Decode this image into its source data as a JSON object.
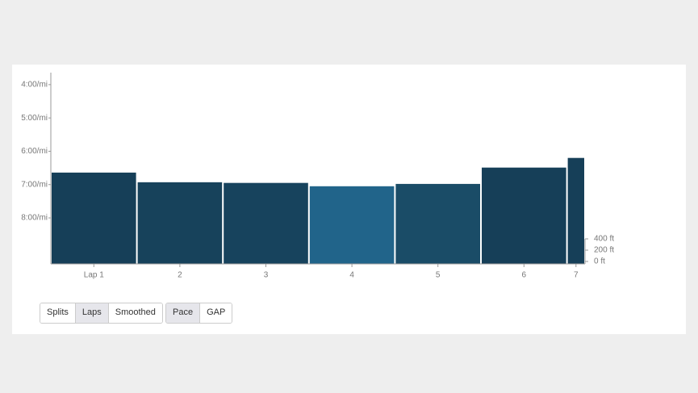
{
  "chart_data": {
    "type": "bar",
    "categories": [
      "Lap 1",
      "2",
      "3",
      "4",
      "5",
      "6",
      "7"
    ],
    "widths": [
      1,
      1,
      1,
      1,
      1,
      1,
      0.21
    ],
    "values": [
      6.64,
      6.93,
      6.95,
      7.05,
      6.98,
      6.49,
      6.2
    ],
    "colors": [
      "#163f58",
      "#17425b",
      "#17435d",
      "#21648a",
      "#1a4c67",
      "#163f58",
      "#163f58"
    ],
    "xlim": [
      0,
      6.21
    ],
    "ylim": [
      9.38,
      3.64
    ],
    "yticks": [
      {
        "value": 4,
        "label": "4:00/mi"
      },
      {
        "value": 5,
        "label": "5:00/mi"
      },
      {
        "value": 6,
        "label": "6:00/mi"
      },
      {
        "value": 7,
        "label": "7:00/mi"
      },
      {
        "value": 8,
        "label": "8:00/mi"
      }
    ],
    "y2lim": [
      -43,
      3343
    ],
    "y2ticks": [
      {
        "value": 400,
        "label": "400 ft"
      },
      {
        "value": 200,
        "label": "200 ft"
      },
      {
        "value": 0,
        "label": "0 ft"
      }
    ]
  },
  "controls": {
    "view": [
      "Splits",
      "Laps",
      "Smoothed"
    ],
    "view_active": 1,
    "metric": [
      "Pace",
      "GAP"
    ],
    "metric_active": 0
  }
}
